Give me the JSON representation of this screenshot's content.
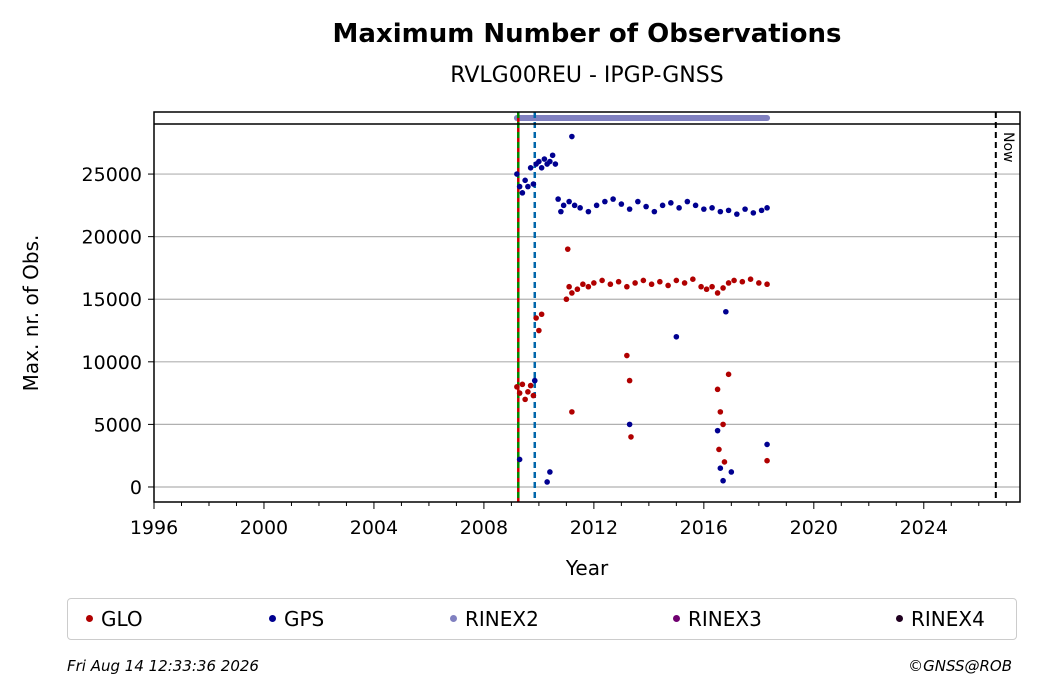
{
  "chart_data": {
    "type": "scatter",
    "title": "Maximum Number of Observations",
    "subtitle": "RVLG00REU - IPGP-GNSS",
    "xlabel": "Year",
    "ylabel": "Max. nr. of Obs.",
    "xlim": [
      1996.0,
      2027.5
    ],
    "ylim": [
      -1200,
      29000
    ],
    "x_ticks": [
      1996,
      2000,
      2004,
      2008,
      2012,
      2016,
      2020,
      2024
    ],
    "y_ticks": [
      0,
      5000,
      10000,
      15000,
      20000,
      25000
    ],
    "grid": "horizontal",
    "now_label": "Now",
    "now_x": 2026.62,
    "vertical_lines": [
      {
        "x": 2009.25,
        "color": "#cc0000",
        "style": "solid"
      },
      {
        "x": 2009.25,
        "color": "#008800",
        "style": "dashed"
      },
      {
        "x": 2009.85,
        "color": "#0066aa",
        "style": "dashed"
      }
    ],
    "rinex_bars": [
      {
        "name": "RINEX2",
        "x_start": 2009.2,
        "x_end": 2018.3,
        "color": "#8080c0"
      }
    ],
    "series": [
      {
        "name": "GLO",
        "color": "#b00000",
        "x": [
          2009.2,
          2009.3,
          2009.4,
          2009.5,
          2009.6,
          2009.7,
          2009.8,
          2009.9,
          2010.0,
          2010.1,
          2011.0,
          2011.1,
          2011.2,
          2011.4,
          2011.6,
          2011.8,
          2012.0,
          2012.3,
          2012.6,
          2012.9,
          2013.2,
          2013.5,
          2013.8,
          2014.1,
          2014.4,
          2014.7,
          2015.0,
          2015.3,
          2015.6,
          2015.9,
          2016.1,
          2016.3,
          2016.5,
          2016.7,
          2016.9,
          2017.1,
          2017.4,
          2017.7,
          2018.0,
          2018.3,
          2013.2,
          2013.3,
          2013.35,
          2016.5,
          2016.55,
          2016.6,
          2016.7,
          2016.75,
          2016.9,
          2011.05,
          2011.2,
          2018.3
        ],
        "y": [
          8000,
          7500,
          8200,
          7000,
          7600,
          8100,
          7300,
          13500,
          12500,
          13800,
          15000,
          16000,
          15500,
          15800,
          16200,
          16000,
          16300,
          16500,
          16200,
          16400,
          16000,
          16300,
          16500,
          16200,
          16400,
          16100,
          16500,
          16300,
          16600,
          16000,
          15800,
          16000,
          15500,
          15900,
          16300,
          16500,
          16400,
          16600,
          16300,
          16200,
          10500,
          8500,
          4000,
          7800,
          3000,
          6000,
          5000,
          2000,
          9000,
          19000,
          6000,
          2100
        ]
      },
      {
        "name": "GPS",
        "color": "#000090",
        "x": [
          2009.2,
          2009.3,
          2009.4,
          2009.5,
          2009.6,
          2009.7,
          2009.8,
          2009.9,
          2010.0,
          2010.1,
          2010.2,
          2010.3,
          2010.4,
          2010.5,
          2010.6,
          2010.7,
          2010.8,
          2010.9,
          2011.1,
          2011.3,
          2011.5,
          2011.8,
          2012.1,
          2012.4,
          2012.7,
          2013.0,
          2013.3,
          2013.6,
          2013.9,
          2014.2,
          2014.5,
          2014.8,
          2015.1,
          2015.4,
          2015.7,
          2016.0,
          2016.3,
          2016.6,
          2016.9,
          2017.2,
          2017.5,
          2017.8,
          2018.1,
          2018.3,
          2011.2,
          2009.3,
          2009.85,
          2010.3,
          2010.4,
          2013.3,
          2015.0,
          2016.5,
          2016.6,
          2016.7,
          2016.8,
          2017.0,
          2018.3
        ],
        "y": [
          25000,
          24000,
          23500,
          24500,
          24000,
          25500,
          24200,
          25800,
          26000,
          25500,
          26200,
          25800,
          26000,
          26500,
          25800,
          23000,
          22000,
          22500,
          22800,
          22500,
          22300,
          22000,
          22500,
          22800,
          23000,
          22600,
          22200,
          22800,
          22400,
          22000,
          22500,
          22700,
          22300,
          22800,
          22500,
          22200,
          22300,
          22000,
          22100,
          21800,
          22200,
          21900,
          22100,
          22300,
          28000,
          2200,
          8500,
          400,
          1200,
          5000,
          12000,
          4500,
          1500,
          500,
          14000,
          1200,
          3400
        ]
      },
      {
        "name": "RINEX2",
        "color": "#8080c0",
        "x": [],
        "y": []
      },
      {
        "name": "RINEX3",
        "color": "#700070",
        "x": [],
        "y": []
      },
      {
        "name": "RINEX4",
        "color": "#200020",
        "x": [],
        "y": []
      }
    ]
  },
  "footer": {
    "timestamp": "Fri Aug 14 12:33:36 2026",
    "copyright": "©GNSS@ROB"
  }
}
